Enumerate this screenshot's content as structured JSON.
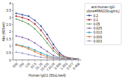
{
  "chart_data": {
    "type": "line",
    "title": "anti-human IgG\nclone#RM219(ug/mL)",
    "xlabel": "Human IgG1 (50uL/well)",
    "ylabel": "Abs (405nm)",
    "categories": [
      "500",
      "250",
      "125",
      "62.5",
      "31.25",
      "15.625",
      "7.8125",
      "3.906",
      "1.953",
      "0.977",
      "0.488"
    ],
    "series": [
      {
        "name": "0.2",
        "color": "#1a3a8a",
        "marker": "circle",
        "values": [
          3.3,
          3.2,
          3.1,
          2.8,
          2.4,
          1.8,
          1.1,
          0.5,
          0.2,
          0.12,
          0.08
        ]
      },
      {
        "name": "0.1",
        "color": "#a02020",
        "marker": "square",
        "values": [
          3.1,
          3.0,
          2.85,
          2.55,
          2.1,
          1.5,
          0.85,
          0.38,
          0.18,
          0.1,
          0.07
        ]
      },
      {
        "name": "0.05",
        "color": "#2a7a2a",
        "marker": "triangle",
        "values": [
          2.9,
          2.75,
          2.55,
          2.2,
          1.75,
          1.2,
          0.65,
          0.28,
          0.14,
          0.09,
          0.06
        ]
      },
      {
        "name": "0.025",
        "color": "#7b4fa0",
        "marker": "diamond",
        "values": [
          1.7,
          1.6,
          1.45,
          1.2,
          0.9,
          0.6,
          0.32,
          0.16,
          0.1,
          0.07,
          0.05
        ]
      },
      {
        "name": "0.013",
        "color": "#2090b0",
        "marker": "circle",
        "values": [
          1.1,
          1.0,
          0.88,
          0.7,
          0.5,
          0.33,
          0.19,
          0.11,
          0.08,
          0.06,
          0.05
        ]
      },
      {
        "name": "0.006",
        "color": "#d07020",
        "marker": "circle",
        "values": [
          1.05,
          0.95,
          0.78,
          0.58,
          0.38,
          0.22,
          0.13,
          0.09,
          0.07,
          0.06,
          0.05
        ]
      },
      {
        "name": "0.003",
        "color": "#9090bb",
        "marker": "circle",
        "values": [
          0.55,
          0.48,
          0.38,
          0.28,
          0.19,
          0.13,
          0.09,
          0.07,
          0.06,
          0.055,
          0.05
        ]
      }
    ],
    "ylim": [
      0,
      4
    ],
    "yticks": [
      0,
      0.5,
      1,
      1.5,
      2,
      2.5,
      3,
      3.5,
      4
    ],
    "grid": false,
    "legend": "right"
  }
}
